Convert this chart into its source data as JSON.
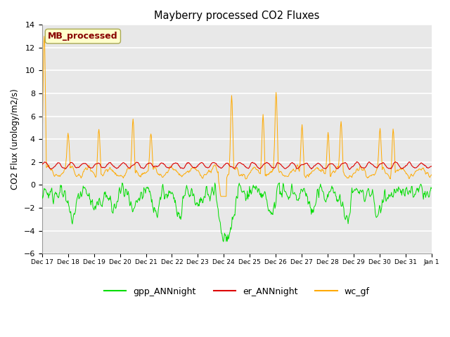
{
  "title": "Mayberry processed CO2 Fluxes",
  "ylabel": "CO2 Flux (urology/m2/s)",
  "ylim": [
    -6,
    14
  ],
  "yticks": [
    -6,
    -4,
    -2,
    0,
    2,
    4,
    6,
    8,
    10,
    12,
    14
  ],
  "plot_bg": "#e8e8e8",
  "fig_bg": "#ffffff",
  "grid_color": "white",
  "line_colors": {
    "gpp": "#00dd00",
    "er": "#dd0000",
    "wc": "#ffaa00"
  },
  "legend_labels": [
    "gpp_ANNnight",
    "er_ANNnight",
    "wc_gf"
  ],
  "annotation_text": "MB_processed",
  "annotation_color": "#880000",
  "annotation_bg": "#ffffcc",
  "annotation_border": "#aaaa55",
  "n_points": 720,
  "seed": 42,
  "tick_labels": [
    "Dec 17",
    "Dec 18",
    "Dec 19",
    "Dec 20",
    "Dec 21",
    "Dec 22",
    "Dec 23",
    "Dec 24",
    "Dec 25",
    "Dec 26",
    "Dec 27",
    "Dec 28",
    "Dec 29",
    "Dec 30",
    "Dec 31",
    "Jan 1"
  ]
}
